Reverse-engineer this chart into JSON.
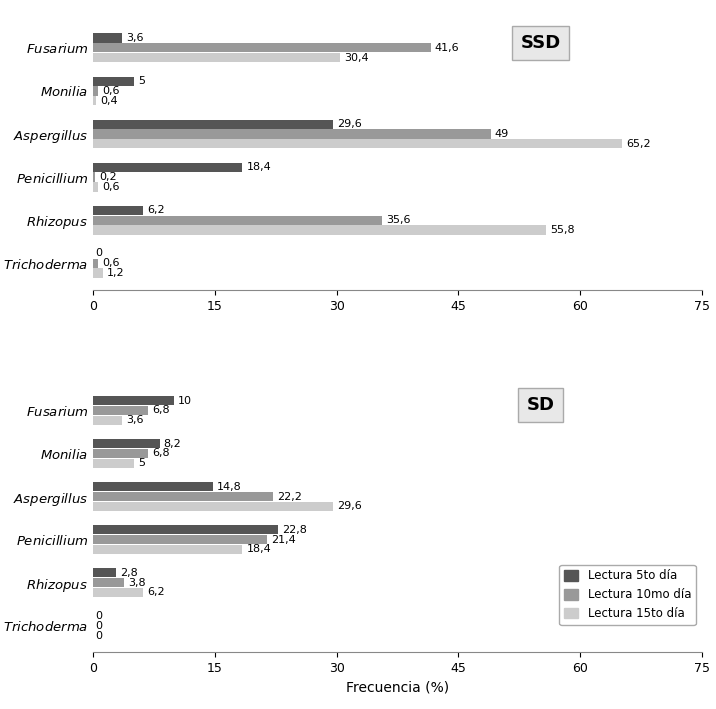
{
  "SSD": {
    "categories": [
      "Fusarium",
      "Monilia",
      "Aspergillus",
      "Penicillium",
      "Rhizopus",
      "Trichoderma"
    ],
    "lectura5": [
      3.6,
      5.0,
      29.6,
      18.4,
      6.2,
      0.0
    ],
    "lectura10": [
      41.6,
      0.6,
      49.0,
      0.2,
      35.6,
      0.6
    ],
    "lectura15": [
      30.4,
      0.4,
      65.2,
      0.6,
      55.8,
      1.2
    ]
  },
  "SD": {
    "categories": [
      "Fusarium",
      "Monilia",
      "Aspergillus",
      "Penicillium",
      "Rhizopus",
      "Trichoderma"
    ],
    "lectura5": [
      10.0,
      8.2,
      14.8,
      22.8,
      2.8,
      0.0
    ],
    "lectura10": [
      6.8,
      6.8,
      22.2,
      21.4,
      3.8,
      0.0
    ],
    "lectura15": [
      3.6,
      5.0,
      29.6,
      18.4,
      6.2,
      0.0
    ]
  },
  "colors": {
    "lectura5": "#555555",
    "lectura10": "#999999",
    "lectura15": "#cccccc"
  },
  "legend_labels": [
    "Lectura 5to día",
    "Lectura 10mo día",
    "Lectura 15to día"
  ],
  "xlabel": "Frecuencia (%)",
  "xlim": [
    0,
    75
  ],
  "xticks": [
    0,
    15,
    30,
    45,
    60,
    75
  ],
  "bar_height": 0.23,
  "label_fontsize": 8.0,
  "category_fontsize": 9.5
}
